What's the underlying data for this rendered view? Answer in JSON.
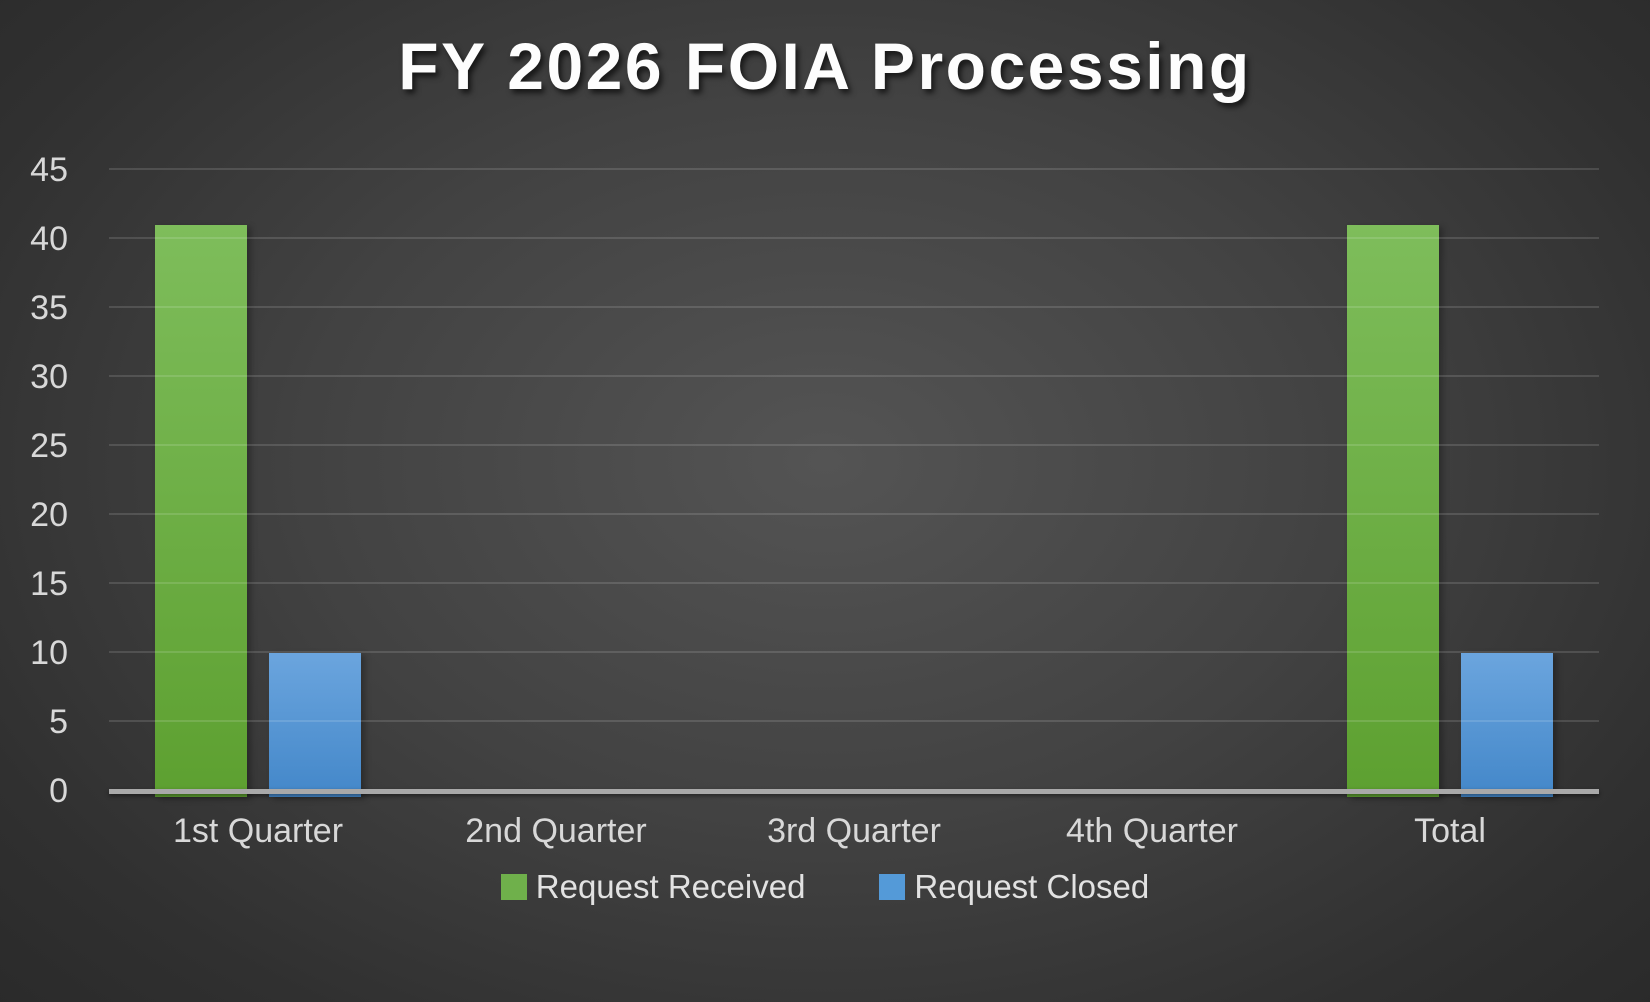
{
  "chart_data": {
    "type": "bar",
    "title": "FY 2026 FOIA Processing",
    "categories": [
      "1st Quarter",
      "2nd Quarter",
      "3rd Quarter",
      "4th Quarter",
      "Total"
    ],
    "series": [
      {
        "name": "Request Received",
        "values": [
          41,
          0,
          0,
          0,
          41
        ],
        "color_top": "#7ebd5b",
        "color_bottom": "#5da030",
        "legend_color": "#6fb04b"
      },
      {
        "name": "Request Closed",
        "values": [
          10,
          0,
          0,
          0,
          10
        ],
        "color_top": "#6ba5de",
        "color_bottom": "#4387c9",
        "legend_color": "#549ad8"
      }
    ],
    "xlabel": "",
    "ylabel": "",
    "ylim": [
      0,
      45
    ],
    "yticks": [
      0,
      5,
      10,
      15,
      20,
      25,
      30,
      35,
      40,
      45
    ],
    "grid": true,
    "legend_position": "bottom"
  },
  "colors": {
    "background_center": "#545454",
    "background_edge": "#262626",
    "axis_line": "#a9a9a9",
    "gridline": "rgba(255,255,255,0.13)",
    "tick_text": "#d8d8d8",
    "title_text": "#fdfdfd"
  }
}
